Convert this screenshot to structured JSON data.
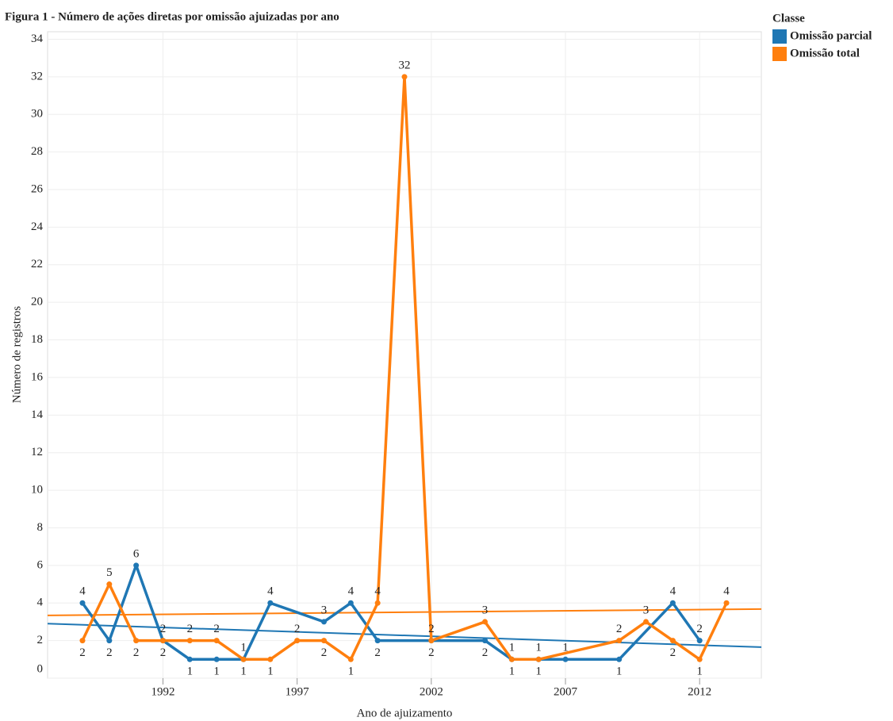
{
  "chart_data": {
    "type": "line",
    "title": "Figura 1 - Número de ações diretas por omissão ajuizadas por ano",
    "x_label": "Ano de ajuizamento",
    "y_label": "Número de registros",
    "legend_title": "Classe",
    "legend_position": "top-right",
    "grid": true,
    "xlim": [
      1987.7,
      2014.3
    ],
    "xticks": [
      1992,
      1997,
      2002,
      2007,
      2012
    ],
    "ylim": [
      0,
      34.4
    ],
    "yticks": [
      0,
      2,
      4,
      6,
      8,
      10,
      12,
      14,
      16,
      18,
      20,
      22,
      24,
      26,
      28,
      30,
      32,
      34
    ],
    "series": [
      {
        "name": "Omissão parcial",
        "color": "#1f77b4",
        "x": [
          1989,
          1990,
          1991,
          1992,
          1993,
          1994,
          1995,
          1996,
          1998,
          1999,
          2000,
          2002,
          2004,
          2005,
          2006,
          2007,
          2009,
          2011,
          2012
        ],
        "values": [
          4,
          2,
          6,
          2,
          1,
          1,
          1,
          4,
          3,
          4,
          2,
          2,
          2,
          1,
          1,
          1,
          1,
          4,
          2
        ],
        "trend": [
          2.9,
          1.65
        ]
      },
      {
        "name": "Omissão total",
        "color": "#ff7f0e",
        "x": [
          1989,
          1990,
          1991,
          1992,
          1993,
          1994,
          1995,
          1996,
          1997,
          1998,
          1999,
          2000,
          2001,
          2002,
          2004,
          2005,
          2006,
          2009,
          2010,
          2011,
          2012,
          2013
        ],
        "values": [
          2,
          5,
          2,
          2,
          2,
          2,
          1,
          1,
          2,
          2,
          1,
          4,
          32,
          2,
          3,
          1,
          1,
          2,
          3,
          2,
          1,
          4
        ],
        "trend": [
          3.34,
          3.68
        ]
      }
    ]
  }
}
